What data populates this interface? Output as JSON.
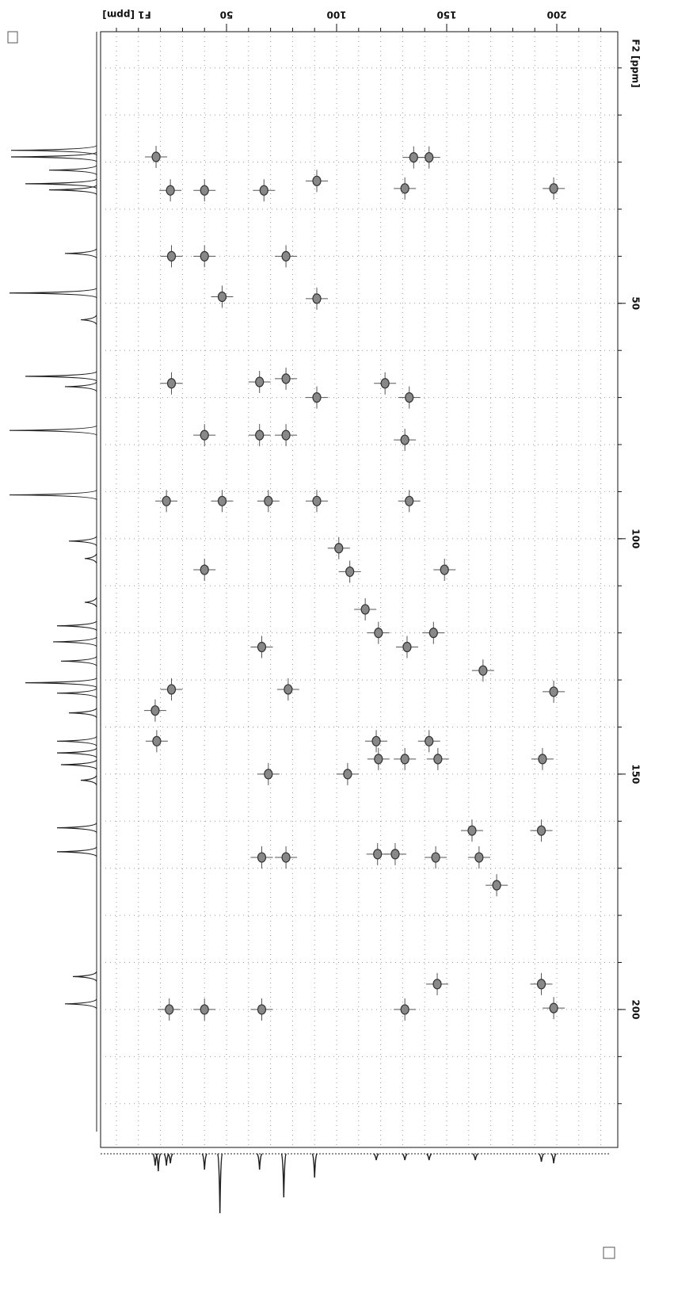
{
  "chart_data": {
    "type": "scatter",
    "x_label": "F1 [ppm]",
    "y_label": "F2 [ppm]",
    "xlim": [
      -7.2,
      227.7
    ],
    "ylim": [
      -7.7,
      229.3
    ],
    "xticks": [
      50,
      100,
      150,
      200
    ],
    "yticks": [
      50,
      100,
      150,
      200
    ],
    "xminor": [
      0,
      10,
      20,
      30,
      40,
      50,
      60,
      70,
      80,
      90,
      100,
      110,
      120,
      130,
      140,
      150,
      160,
      170,
      180,
      190,
      200,
      210,
      220
    ],
    "yminor": [
      0,
      10,
      20,
      30,
      40,
      50,
      60,
      70,
      80,
      90,
      100,
      110,
      120,
      130,
      140,
      150,
      160,
      170,
      180,
      190,
      200,
      210,
      220
    ],
    "grid": true,
    "color": "#333333",
    "x": [
      18,
      24.5,
      40,
      67,
      135,
      142,
      91,
      131,
      198.6,
      25,
      40,
      77,
      48,
      91,
      65,
      77,
      122,
      25,
      133,
      91,
      40,
      65,
      77,
      131,
      91,
      22.7,
      48,
      69,
      133,
      101,
      106,
      40,
      149,
      113,
      119,
      66,
      132,
      144,
      166.5,
      78,
      25,
      198.6,
      17.6,
      18.3,
      118,
      142,
      119,
      131,
      146,
      193.5,
      69,
      105,
      161.5,
      193,
      126.6,
      118.6,
      66,
      77,
      164.7,
      172.7,
      145,
      145.7,
      193,
      198.6,
      24,
      40,
      66,
      131
    ],
    "values": [
      18.9,
      26,
      26,
      26,
      19,
      19,
      24,
      25.6,
      25.6,
      40,
      40,
      40,
      48.6,
      49,
      66.7,
      66,
      67,
      67,
      70,
      70,
      78,
      78,
      78,
      79,
      92,
      92,
      92,
      92,
      92,
      102,
      107,
      106.6,
      106.6,
      115,
      120,
      123,
      123,
      120,
      128,
      132,
      132,
      132.5,
      136.5,
      143,
      143,
      143,
      146.8,
      146.8,
      146.8,
      146.8,
      150,
      150,
      162,
      162,
      167,
      167,
      167.7,
      167.7,
      167.7,
      173.6,
      167.7,
      194.6,
      194.6,
      199.7,
      200,
      200,
      200,
      200
    ],
    "f2_projection": {
      "positions": [
        17.5,
        18.9,
        21.7,
        24.6,
        25.9,
        39.4,
        47.8,
        53.5,
        65.5,
        67.7,
        77,
        90.7,
        100.5,
        104.2,
        113.5,
        118.5,
        121.9,
        126,
        130.6,
        132.8,
        137,
        143,
        145.5,
        148,
        151.3,
        161.4,
        166.5,
        193,
        198.8
      ],
      "heights": [
        108,
        108,
        60,
        90,
        60,
        40,
        110,
        20,
        90,
        40,
        110,
        110,
        35,
        15,
        15,
        50,
        55,
        45,
        90,
        50,
        35,
        50,
        50,
        45,
        20,
        50,
        50,
        30,
        40
      ]
    },
    "f1_projection": {
      "positions": [
        17.6,
        19,
        22.7,
        24.5,
        40,
        47,
        65,
        76,
        90,
        118,
        131,
        142,
        163,
        193,
        198.6
      ],
      "heights": [
        15,
        22,
        15,
        12,
        20,
        75,
        20,
        55,
        30,
        8,
        8,
        8,
        8,
        10,
        12
      ]
    }
  }
}
